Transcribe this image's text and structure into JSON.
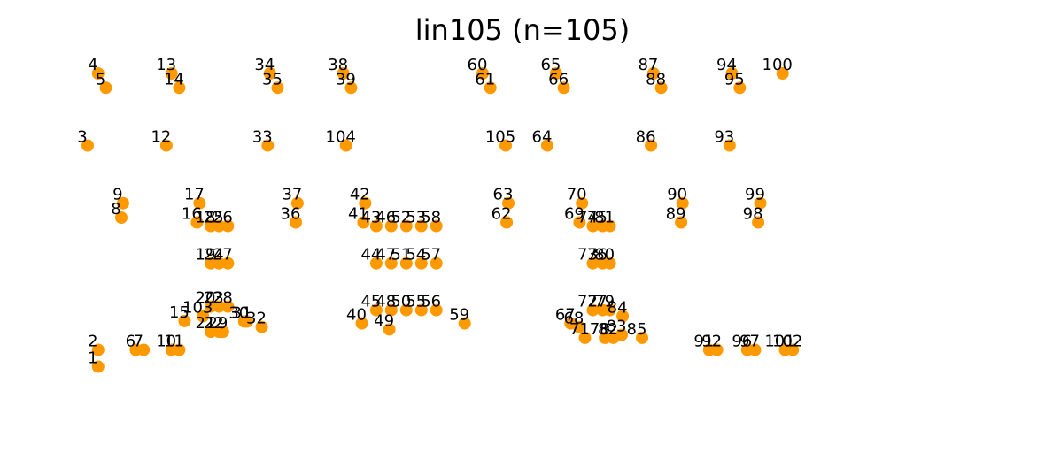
{
  "chart_data": {
    "type": "scatter",
    "title": "lin105  (n=105)",
    "marker_color": "#ff9900",
    "xlim": [
      0,
      3600
    ],
    "ylim": [
      0,
      1520
    ],
    "grid": false,
    "axes_visible": false,
    "points": [
      {
        "label": "1",
        "x": 43,
        "y": 1220
      },
      {
        "label": "2",
        "x": 43,
        "y": 1150
      },
      {
        "label": "3",
        "x": 0,
        "y": 300
      },
      {
        "label": "4",
        "x": 43,
        "y": 0
      },
      {
        "label": "5",
        "x": 75,
        "y": 60
      },
      {
        "label": "6",
        "x": 199,
        "y": 1150
      },
      {
        "label": "7",
        "x": 231,
        "y": 1150
      },
      {
        "label": "8",
        "x": 139,
        "y": 600
      },
      {
        "label": "9",
        "x": 146,
        "y": 540
      },
      {
        "label": "10",
        "x": 346,
        "y": 1150
      },
      {
        "label": "11",
        "x": 378,
        "y": 1150
      },
      {
        "label": "12",
        "x": 325,
        "y": 300
      },
      {
        "label": "13",
        "x": 346,
        "y": 0
      },
      {
        "label": "14",
        "x": 378,
        "y": 60
      },
      {
        "label": "15",
        "x": 400,
        "y": 1030
      },
      {
        "label": "16",
        "x": 451,
        "y": 620
      },
      {
        "label": "17",
        "x": 462,
        "y": 540
      },
      {
        "label": "18",
        "x": 508,
        "y": 635
      },
      {
        "label": "19",
        "x": 508,
        "y": 790
      },
      {
        "label": "20",
        "x": 508,
        "y": 970
      },
      {
        "label": "21",
        "x": 508,
        "y": 1075
      },
      {
        "label": "22",
        "x": 542,
        "y": 1075
      },
      {
        "label": "23",
        "x": 542,
        "y": 970
      },
      {
        "label": "24",
        "x": 542,
        "y": 790
      },
      {
        "label": "25",
        "x": 542,
        "y": 635
      },
      {
        "label": "26",
        "x": 579,
        "y": 635
      },
      {
        "label": "27",
        "x": 579,
        "y": 790
      },
      {
        "label": "28",
        "x": 579,
        "y": 970
      },
      {
        "label": "29",
        "x": 559,
        "y": 1075
      },
      {
        "label": "30",
        "x": 646,
        "y": 1032
      },
      {
        "label": "31",
        "x": 658,
        "y": 1032
      },
      {
        "label": "32",
        "x": 718,
        "y": 1055
      },
      {
        "label": "33",
        "x": 743,
        "y": 300
      },
      {
        "label": "34",
        "x": 752,
        "y": 0
      },
      {
        "label": "35",
        "x": 784,
        "y": 60
      },
      {
        "label": "36",
        "x": 859,
        "y": 620
      },
      {
        "label": "37",
        "x": 866,
        "y": 540
      },
      {
        "label": "38",
        "x": 1055,
        "y": 0
      },
      {
        "label": "39",
        "x": 1087,
        "y": 60
      },
      {
        "label": "40",
        "x": 1131,
        "y": 1040
      },
      {
        "label": "41",
        "x": 1138,
        "y": 620
      },
      {
        "label": "42",
        "x": 1145,
        "y": 540
      },
      {
        "label": "43",
        "x": 1191,
        "y": 635
      },
      {
        "label": "44",
        "x": 1191,
        "y": 790
      },
      {
        "label": "45",
        "x": 1191,
        "y": 985
      },
      {
        "label": "46",
        "x": 1253,
        "y": 635
      },
      {
        "label": "47",
        "x": 1253,
        "y": 790
      },
      {
        "label": "48",
        "x": 1253,
        "y": 985
      },
      {
        "label": "49",
        "x": 1245,
        "y": 1065
      },
      {
        "label": "50",
        "x": 1315,
        "y": 985
      },
      {
        "label": "51",
        "x": 1315,
        "y": 790
      },
      {
        "label": "52",
        "x": 1315,
        "y": 635
      },
      {
        "label": "53",
        "x": 1377,
        "y": 635
      },
      {
        "label": "54",
        "x": 1377,
        "y": 790
      },
      {
        "label": "55",
        "x": 1377,
        "y": 985
      },
      {
        "label": "56",
        "x": 1439,
        "y": 985
      },
      {
        "label": "57",
        "x": 1439,
        "y": 790
      },
      {
        "label": "58",
        "x": 1439,
        "y": 635
      },
      {
        "label": "59",
        "x": 1556,
        "y": 1040
      },
      {
        "label": "60",
        "x": 1630,
        "y": 0
      },
      {
        "label": "61",
        "x": 1662,
        "y": 60
      },
      {
        "label": "62",
        "x": 1729,
        "y": 620
      },
      {
        "label": "63",
        "x": 1736,
        "y": 540
      },
      {
        "label": "64",
        "x": 1897,
        "y": 300
      },
      {
        "label": "65",
        "x": 1933,
        "y": 0
      },
      {
        "label": "66",
        "x": 1965,
        "y": 60
      },
      {
        "label": "67",
        "x": 1993,
        "y": 1040
      },
      {
        "label": "68",
        "x": 2028,
        "y": 1055
      },
      {
        "label": "69",
        "x": 2030,
        "y": 620
      },
      {
        "label": "70",
        "x": 2040,
        "y": 540
      },
      {
        "label": "71",
        "x": 2052,
        "y": 1100
      },
      {
        "label": "72",
        "x": 2085,
        "y": 985
      },
      {
        "label": "73",
        "x": 2085,
        "y": 790
      },
      {
        "label": "74",
        "x": 2085,
        "y": 635
      },
      {
        "label": "75",
        "x": 2125,
        "y": 635
      },
      {
        "label": "76",
        "x": 2125,
        "y": 790
      },
      {
        "label": "77",
        "x": 2125,
        "y": 985
      },
      {
        "label": "78",
        "x": 2135,
        "y": 1100
      },
      {
        "label": "79",
        "x": 2155,
        "y": 985
      },
      {
        "label": "80",
        "x": 2155,
        "y": 790
      },
      {
        "label": "81",
        "x": 2155,
        "y": 635
      },
      {
        "label": "82",
        "x": 2169,
        "y": 1100
      },
      {
        "label": "83",
        "x": 2204,
        "y": 1088
      },
      {
        "label": "84",
        "x": 2208,
        "y": 1010
      },
      {
        "label": "85",
        "x": 2288,
        "y": 1100
      },
      {
        "label": "86",
        "x": 2325,
        "y": 300
      },
      {
        "label": "87",
        "x": 2335,
        "y": 0
      },
      {
        "label": "88",
        "x": 2367,
        "y": 60
      },
      {
        "label": "89",
        "x": 2449,
        "y": 620
      },
      {
        "label": "90",
        "x": 2455,
        "y": 540
      },
      {
        "label": "91",
        "x": 2565,
        "y": 1150
      },
      {
        "label": "92",
        "x": 2597,
        "y": 1150
      },
      {
        "label": "93",
        "x": 2649,
        "y": 300
      },
      {
        "label": "94",
        "x": 2659,
        "y": 0
      },
      {
        "label": "95",
        "x": 2691,
        "y": 60
      },
      {
        "label": "96",
        "x": 2722,
        "y": 1150
      },
      {
        "label": "97",
        "x": 2754,
        "y": 1150
      },
      {
        "label": "98",
        "x": 2767,
        "y": 620
      },
      {
        "label": "99",
        "x": 2776,
        "y": 540
      },
      {
        "label": "100",
        "x": 2868,
        "y": 0
      },
      {
        "label": "101",
        "x": 2878,
        "y": 1150
      },
      {
        "label": "102",
        "x": 2910,
        "y": 1150
      },
      {
        "label": "103",
        "x": 476,
        "y": 1010
      },
      {
        "label": "104",
        "x": 1066,
        "y": 300
      },
      {
        "label": "105",
        "x": 1725,
        "y": 300
      }
    ]
  }
}
